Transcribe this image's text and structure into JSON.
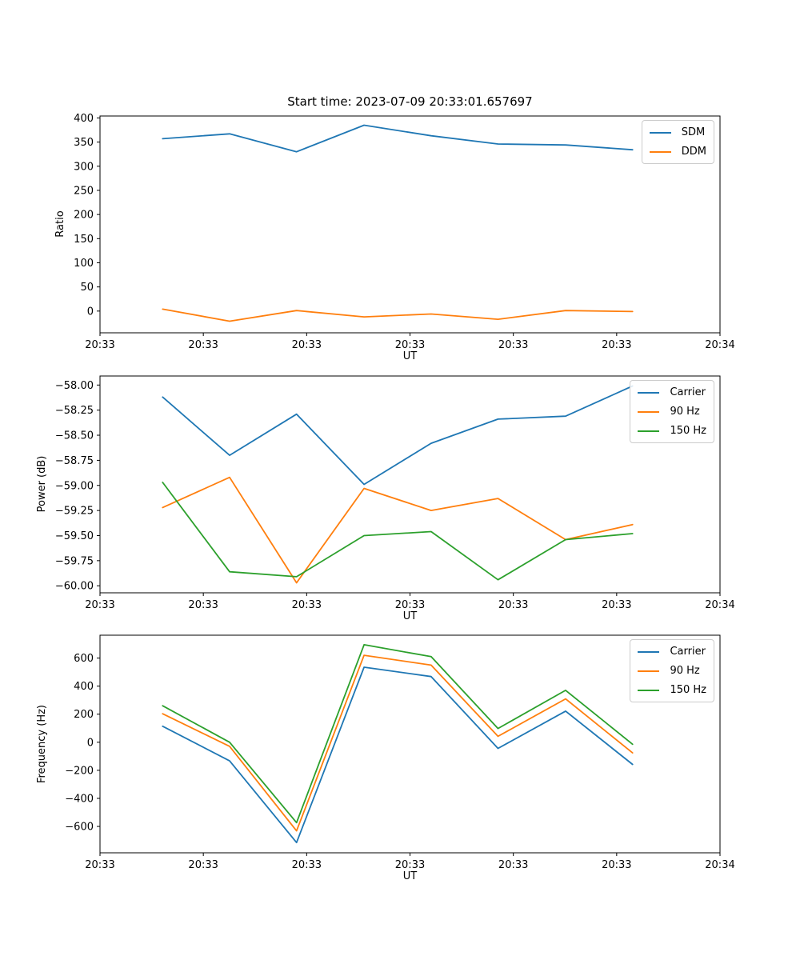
{
  "title": "Start time: 2023-07-09 20:33:01.657697",
  "x_axis": {
    "label": "UT",
    "tick_labels": [
      "20:33",
      "20:33",
      "20:33",
      "20:33",
      "20:33",
      "20:33",
      "20:34"
    ],
    "point_fractions": [
      0.101,
      0.209,
      0.317,
      0.426,
      0.534,
      0.642,
      0.751,
      0.859
    ]
  },
  "colors": {
    "blue": "#1f77b4",
    "orange": "#ff7f0e",
    "green": "#2ca02c",
    "axis": "#000000",
    "legend_border": "#cccccc"
  },
  "chart_data": [
    {
      "type": "line",
      "name": "ratio",
      "ylabel": "Ratio",
      "xlabel": "UT",
      "ylim": [
        -45,
        404
      ],
      "yticks": [
        0,
        50,
        100,
        150,
        200,
        250,
        300,
        350,
        400
      ],
      "ytick_decimals": 0,
      "grid": false,
      "legend_position": "upper right",
      "series": [
        {
          "name": "SDM",
          "color": "#1f77b4",
          "values": [
            357,
            367,
            330,
            385,
            363,
            346,
            344,
            334
          ]
        },
        {
          "name": "DDM",
          "color": "#ff7f0e",
          "values": [
            4,
            -21,
            1,
            -12,
            -6,
            -17,
            1,
            -1
          ]
        }
      ]
    },
    {
      "type": "line",
      "name": "power",
      "ylabel": "Power (dB)",
      "xlabel": "UT",
      "ylim": [
        -60.07,
        -57.91
      ],
      "yticks": [
        -58.0,
        -58.25,
        -58.5,
        -58.75,
        -59.0,
        -59.25,
        -59.5,
        -59.75,
        -60.0
      ],
      "ytick_decimals": 2,
      "grid": false,
      "legend_position": "upper right",
      "series": [
        {
          "name": "Carrier",
          "color": "#1f77b4",
          "values": [
            -58.12,
            -58.7,
            -58.29,
            -58.99,
            -58.58,
            -58.34,
            -58.31,
            -58.01
          ]
        },
        {
          "name": "90 Hz",
          "color": "#ff7f0e",
          "values": [
            -59.22,
            -58.92,
            -59.97,
            -59.03,
            -59.25,
            -59.13,
            -59.54,
            -59.39
          ]
        },
        {
          "name": "150 Hz",
          "color": "#2ca02c",
          "values": [
            -58.97,
            -59.86,
            -59.91,
            -59.5,
            -59.46,
            -59.94,
            -59.54,
            -59.48
          ]
        }
      ]
    },
    {
      "type": "line",
      "name": "frequency",
      "ylabel": "Frequency (Hz)",
      "xlabel": "UT",
      "ylim": [
        -788,
        763
      ],
      "yticks": [
        -600,
        -400,
        -200,
        0,
        200,
        400,
        600
      ],
      "ytick_decimals": 0,
      "grid": false,
      "legend_position": "upper right",
      "series": [
        {
          "name": "Carrier",
          "color": "#1f77b4",
          "values": [
            114,
            -133,
            -715,
            535,
            468,
            -44,
            222,
            -158
          ]
        },
        {
          "name": "90 Hz",
          "color": "#ff7f0e",
          "values": [
            203,
            -29,
            -632,
            620,
            550,
            42,
            309,
            -76
          ]
        },
        {
          "name": "150 Hz",
          "color": "#2ca02c",
          "values": [
            260,
            0,
            -573,
            695,
            610,
            98,
            370,
            -14
          ]
        }
      ]
    }
  ]
}
